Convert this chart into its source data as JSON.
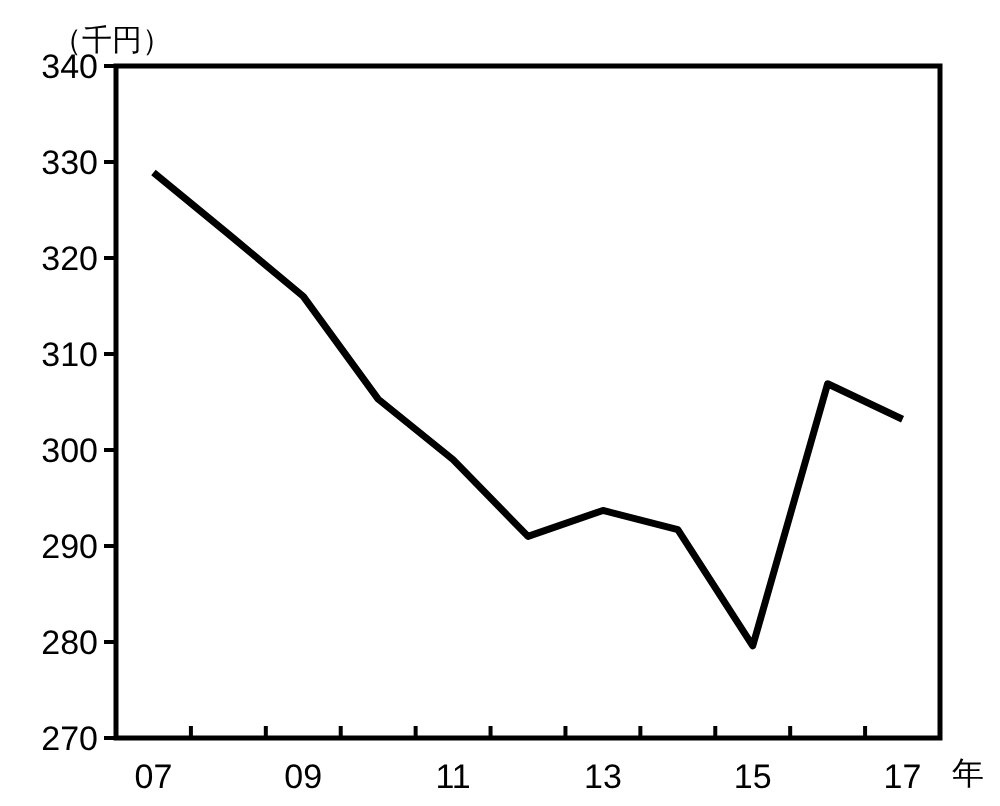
{
  "chart_data": {
    "type": "line",
    "ylabel": "（千円）",
    "xlabel": "年",
    "categories": [
      "07",
      null,
      "09",
      null,
      "11",
      null,
      "13",
      null,
      "15",
      null,
      "17"
    ],
    "series": [
      {
        "color": "#000000",
        "values": [
          328.9,
          322.5,
          316.0,
          305.3,
          299.0,
          291.0,
          293.7,
          291.7,
          279.6,
          306.9,
          303.2
        ]
      }
    ],
    "ylim": [
      270,
      340
    ],
    "yticks": [
      270,
      280,
      290,
      300,
      310,
      320,
      330,
      340
    ],
    "grid": false,
    "marker": "none",
    "line_style": "solid"
  }
}
